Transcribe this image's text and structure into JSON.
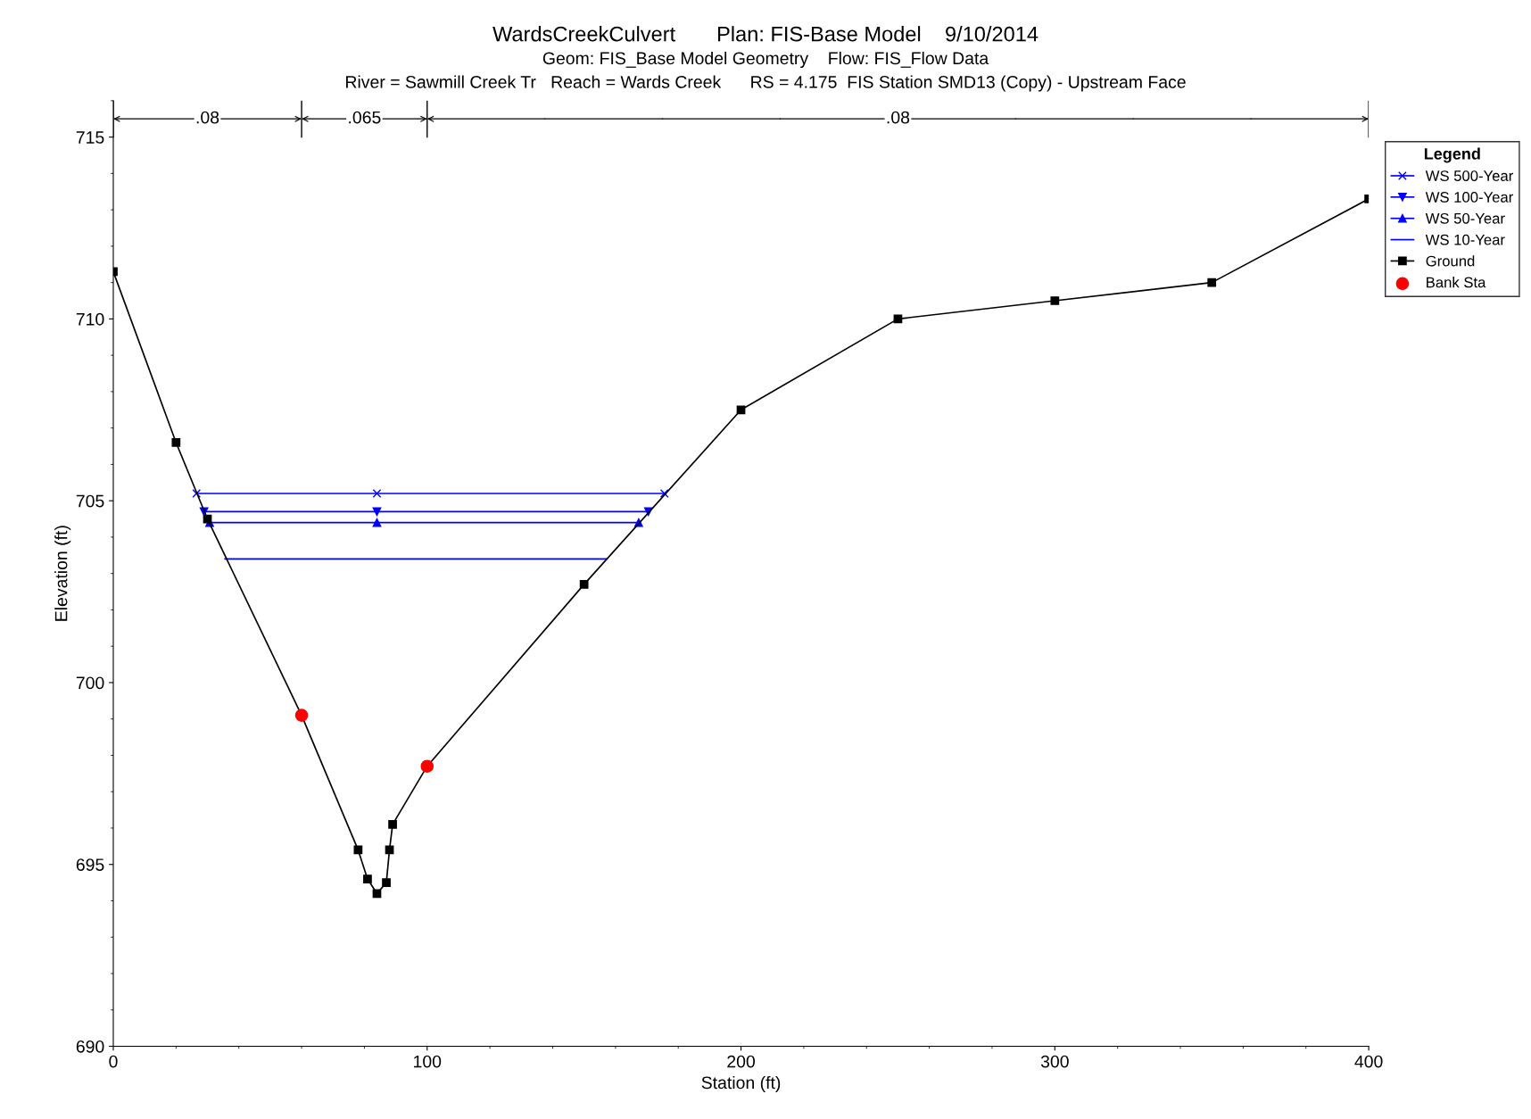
{
  "chart_data": {
    "type": "line",
    "title": "WardsCreekCulvert       Plan: FIS-Base Model    9/10/2014",
    "subtitle": "Geom: FIS_Base Model Geometry    Flow: FIS_Flow Data\nRiver = Sawmill Creek Tr   Reach = Wards Creek      RS = 4.175  FIS Station SMD13 (Copy) - Upstream Face",
    "xlabel": "Station (ft)",
    "ylabel": "Elevation (ft)",
    "legend_title": "Legend",
    "legend": "right",
    "grid": false,
    "xlim": [
      0,
      400
    ],
    "xticks": [
      0,
      100,
      200,
      300,
      400
    ],
    "ylim": [
      690,
      716
    ],
    "yticks": [
      690,
      695,
      700,
      705,
      710,
      715
    ],
    "annotations": [
      {
        "text": ".08",
        "x": 30,
        "y": 715.5
      },
      {
        "text": ".065",
        "x": 80,
        "y": 715.5
      },
      {
        "text": ".08",
        "x": 250,
        "y": 715.5
      }
    ],
    "series": [
      {
        "name": "WS 500-Year",
        "color": "#0000ff",
        "marker": "cross",
        "x": [
          26.5,
          84,
          175.6
        ],
        "values": [
          705.2,
          705.2,
          705.2
        ]
      },
      {
        "name": "WS 100-Year",
        "color": "#0000ff",
        "marker": "triangle_down",
        "x": [
          28.9,
          84,
          170.5
        ],
        "values": [
          704.7,
          704.7,
          704.7
        ]
      },
      {
        "name": "WS 50-Year",
        "color": "#0000ff",
        "marker": "triangle",
        "x": [
          30.7,
          84,
          167.4
        ],
        "values": [
          704.4,
          704.4,
          704.4
        ]
      },
      {
        "name": "WS 10-Year",
        "color": "#0000ff",
        "marker": "none",
        "x": [
          35.6,
          157.1
        ],
        "values": [
          703.4,
          703.4
        ]
      },
      {
        "name": "Ground",
        "color": "#000000",
        "marker": "square",
        "x": [
          0,
          20,
          30,
          60,
          78,
          81,
          84,
          87,
          88,
          89,
          100,
          150,
          200,
          250,
          300,
          350,
          400
        ],
        "values": [
          711.3,
          706.6,
          704.5,
          699.1,
          695.4,
          694.6,
          694.2,
          694.5,
          695.4,
          696.1,
          697.7,
          702.7,
          707.5,
          710.0,
          710.5,
          711.0,
          713.3
        ]
      },
      {
        "name": "Bank Sta",
        "type": "scatter",
        "color": "#ff0000",
        "marker": "circle",
        "x": [
          60,
          100
        ],
        "values": [
          699.1,
          697.7
        ]
      }
    ]
  }
}
